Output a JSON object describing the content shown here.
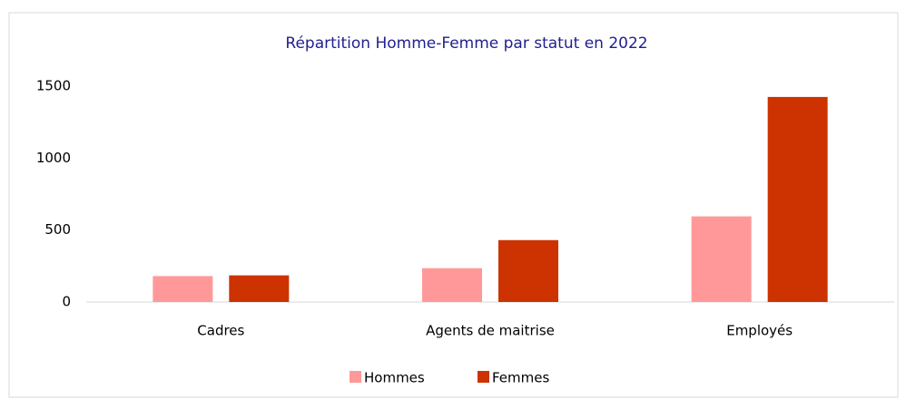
{
  "chart_data": {
    "type": "bar",
    "title": "Répartition Homme-Femme par statut en 2022",
    "categories": [
      "Cadres",
      "Agents de maitrise",
      "Employés"
    ],
    "series": [
      {
        "name": "Hommes",
        "color": "#ff9999",
        "values": [
          180,
          235,
          595
        ]
      },
      {
        "name": "Femmes",
        "color": "#cc3300",
        "values": [
          185,
          430,
          1425
        ]
      }
    ],
    "ylim": [
      0,
      1500
    ],
    "yticks": [
      0,
      500,
      1000,
      1500
    ],
    "grid": false,
    "legend": "bottom"
  }
}
